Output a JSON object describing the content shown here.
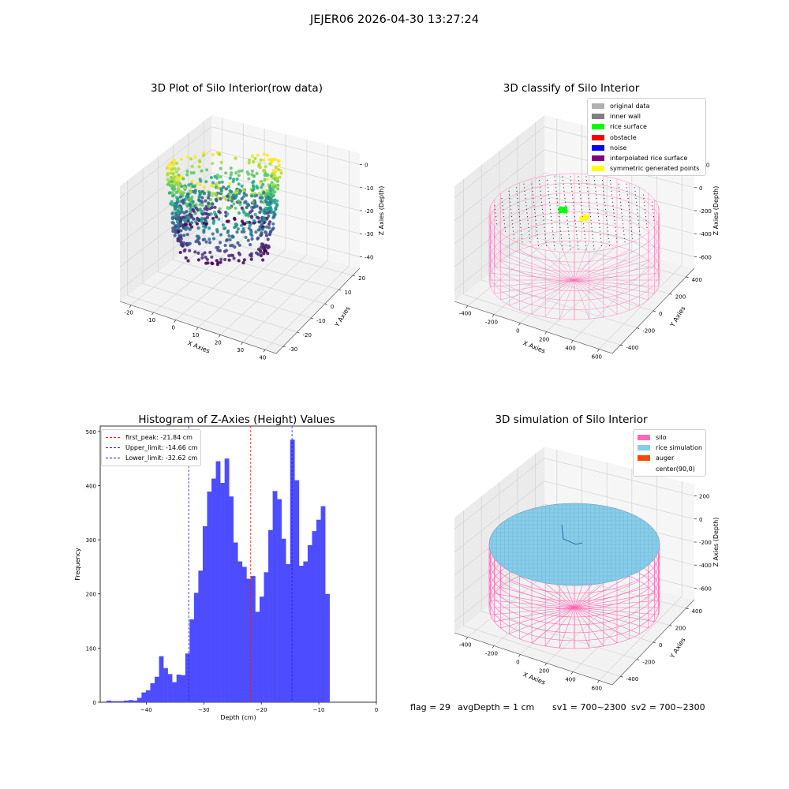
{
  "suptitle": "JEJER06 2026-04-30 13:27:24",
  "colors": {
    "hist_bar": "#4d4dff",
    "first_peak": "#e02020",
    "limit": "#2222cc",
    "silo": "#ff69b4",
    "rice_sim": "#87ceeb",
    "auger": "#ff4500",
    "original": "#b0b0b0",
    "inner_wall": "#808080",
    "rice_surface": "#00ff00",
    "obstacle": "#ff0000",
    "noise": "#0000ff",
    "interp_surface": "#800080",
    "symmetric": "#ffff00"
  },
  "panels": {
    "raw": {
      "title": "3D Plot of Silo Interior(row data)",
      "xlabel": "X Axies",
      "ylabel": "Y Axies",
      "zlabel": "Z Axies (Depth)",
      "xticks": [
        "-20",
        "-10",
        "0",
        "10",
        "20",
        "30",
        "40"
      ],
      "yticks": [
        "20",
        "10",
        "0",
        "-10",
        "-20",
        "-30"
      ],
      "zticks": [
        "0",
        "-10",
        "-20",
        "-30",
        "-40"
      ]
    },
    "classify": {
      "title": "3D classify of Silo Interior",
      "xlabel": "X Axies",
      "ylabel": "Y Axies",
      "zlabel": "Z Axies (Depth)",
      "xticks": [
        "-400",
        "-200",
        "0",
        "200",
        "400",
        "600"
      ],
      "yticks": [
        "400",
        "200",
        "0",
        "-200",
        "-400"
      ],
      "zticks": [
        "200",
        "0",
        "-200",
        "-400",
        "-600"
      ],
      "legend": [
        {
          "label": "original data",
          "color": "#b0b0b0"
        },
        {
          "label": "inner wall",
          "color": "#808080"
        },
        {
          "label": "rice surface",
          "color": "#00ff00"
        },
        {
          "label": "obstacle",
          "color": "#ff0000"
        },
        {
          "label": "noise",
          "color": "#0000ff"
        },
        {
          "label": "interpolated rice surface",
          "color": "#800080"
        },
        {
          "label": "symmetric generated points",
          "color": "#ffff00"
        }
      ]
    },
    "histogram": {
      "title": "Histogram of Z-Axies (Height) Values",
      "xlabel": "Depth (cm)",
      "ylabel": "Frequency",
      "legend": [
        {
          "label": "first_peak: -21.84 cm",
          "color": "#e02020"
        },
        {
          "label": "Upper_limit: -14.66 cm",
          "color": "#2222cc"
        },
        {
          "label": "Lower_limit: -32.62 cm",
          "color": "#2222cc"
        }
      ]
    },
    "simulation": {
      "title": "3D simulation of Silo Interior",
      "xlabel": "X Axies",
      "ylabel": "Y Axies",
      "zlabel": "Z Axies (Depth)",
      "xticks": [
        "-400",
        "-200",
        "0",
        "200",
        "400",
        "600"
      ],
      "yticks": [
        "400",
        "200",
        "0",
        "-200",
        "-400"
      ],
      "zticks": [
        "200",
        "0",
        "-200",
        "-400",
        "-600"
      ],
      "legend": [
        {
          "label": "silo",
          "color": "#ff69b4"
        },
        {
          "label": "rice simulation",
          "color": "#87ceeb"
        },
        {
          "label": "auger",
          "color": "#ff4500"
        },
        {
          "label": "center(90,0)",
          "color": ""
        }
      ]
    }
  },
  "footer": {
    "flag": "flag = 29",
    "avg": "avgDepth = 1 cm",
    "sv1": "sv1 = 700~2300",
    "sv2": "sv2 = 700~2300"
  },
  "chart_data": [
    {
      "type": "scatter",
      "title": "3D Plot of Silo Interior(row data)",
      "xlabel": "X Axies",
      "ylabel": "Y Axies",
      "zlabel": "Z Axies (Depth)",
      "xlim": [
        -22,
        45
      ],
      "ylim": [
        -35,
        25
      ],
      "zlim": [
        -47,
        2
      ]
    },
    {
      "type": "scatter",
      "title": "3D classify of Silo Interior",
      "xlabel": "X Axies",
      "ylabel": "Y Axies",
      "zlabel": "Z Axies (Depth)",
      "xlim": [
        -450,
        650
      ],
      "ylim": [
        -450,
        450
      ],
      "zlim": [
        -700,
        250
      ],
      "legend": [
        "original data",
        "inner wall",
        "rice surface",
        "obstacle",
        "noise",
        "interpolated rice surface",
        "symmetric generated points"
      ],
      "legend_position": "upper right"
    },
    {
      "type": "bar",
      "title": "Histogram of Z-Axies (Height) Values",
      "xlabel": "Depth (cm)",
      "ylabel": "Frequency",
      "xlim": [
        -48,
        0
      ],
      "ylim": [
        0,
        510
      ],
      "xticks": [
        -40,
        -30,
        -20,
        -10,
        0
      ],
      "yticks": [
        0,
        100,
        200,
        300,
        400,
        500
      ],
      "bin_width": 0.76,
      "bin_start": -46.9,
      "values": [
        3,
        2,
        2,
        2,
        3,
        4,
        3,
        8,
        18,
        22,
        35,
        47,
        85,
        63,
        52,
        37,
        51,
        50,
        90,
        153,
        202,
        243,
        325,
        389,
        413,
        445,
        405,
        450,
        380,
        295,
        260,
        250,
        228,
        233,
        167,
        195,
        240,
        318,
        390,
        375,
        302,
        255,
        485,
        410,
        252,
        260,
        290,
        316,
        337,
        362,
        200
      ],
      "lines": [
        {
          "name": "first_peak",
          "x": -21.84
        },
        {
          "name": "Upper_limit",
          "x": -14.66
        },
        {
          "name": "Lower_limit",
          "x": -32.62
        }
      ],
      "legend_position": "upper left"
    },
    {
      "type": "scatter",
      "title": "3D simulation of Silo Interior",
      "xlabel": "X Axies",
      "ylabel": "Y Axies",
      "zlabel": "Z Axies (Depth)",
      "xlim": [
        -450,
        650
      ],
      "ylim": [
        -450,
        450
      ],
      "zlim": [
        -700,
        250
      ],
      "legend": [
        "silo",
        "rice simulation",
        "auger",
        "center(90,0)"
      ],
      "legend_position": "upper right"
    }
  ]
}
